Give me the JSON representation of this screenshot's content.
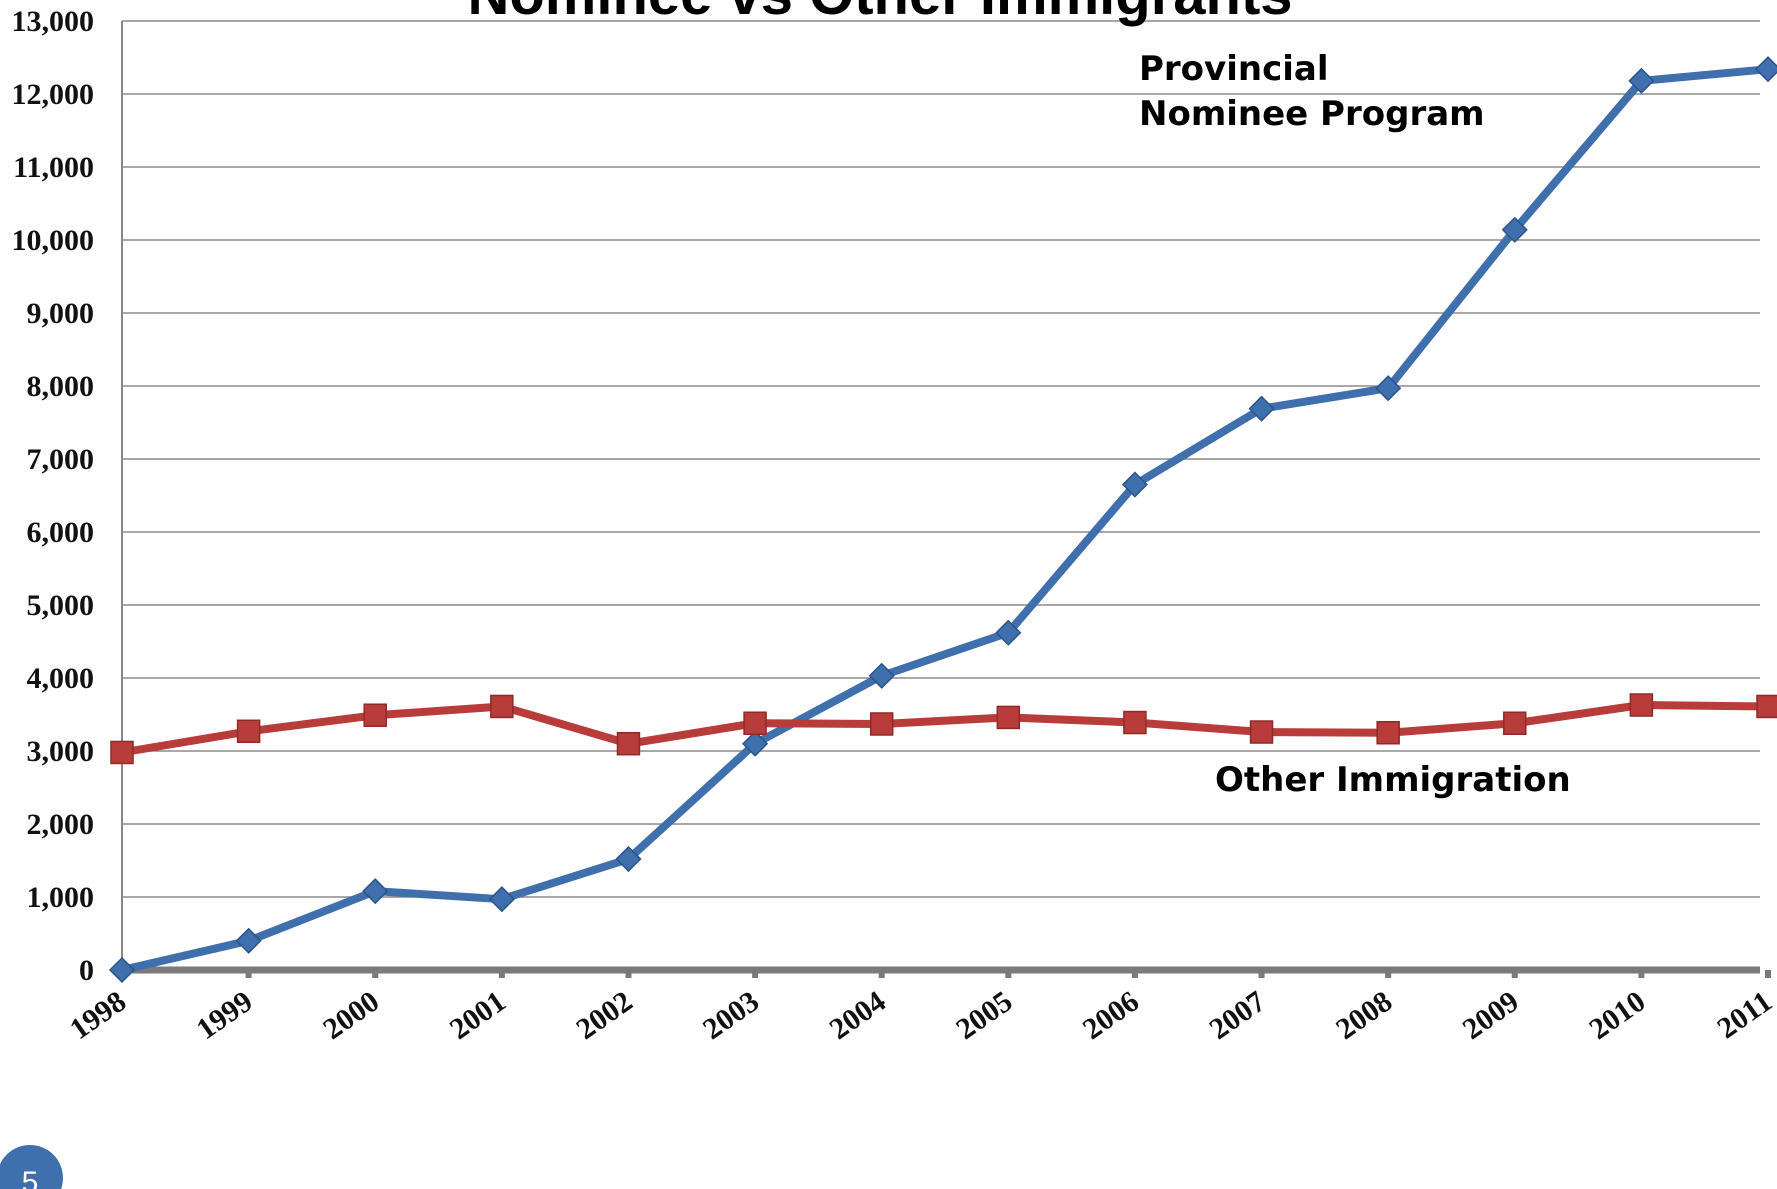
{
  "chart_data": {
    "type": "line",
    "title": "Nominee vs Other Immigrants",
    "categories": [
      "1998",
      "1999",
      "2000",
      "2001",
      "2002",
      "2003",
      "2004",
      "2005",
      "2006",
      "2007",
      "2008",
      "2009",
      "2010",
      "2011"
    ],
    "series": [
      {
        "name": "Provincial Nominee Program",
        "label_lines": [
          "Provincial",
          "Nominee Program"
        ],
        "color": "#3f6fad",
        "marker": "diamond",
        "values": [
          0,
          400,
          1080,
          970,
          1520,
          3100,
          4030,
          4620,
          6650,
          7690,
          7970,
          10140,
          12180,
          12340
        ]
      },
      {
        "name": "Other Immigration",
        "label_lines": [
          "Other Immigration"
        ],
        "color": "#b83c3a",
        "marker": "square",
        "values": [
          2980,
          3270,
          3490,
          3610,
          3100,
          3380,
          3370,
          3460,
          3390,
          3260,
          3250,
          3380,
          3630,
          3610
        ]
      }
    ],
    "yticks": [
      "0",
      "1,000",
      "2,000",
      "3,000",
      "4,000",
      "5,000",
      "6,000",
      "7,000",
      "8,000",
      "9,000",
      "10,000",
      "11,000",
      "12,000",
      "13,000"
    ],
    "ylim": [
      0,
      13000
    ],
    "grid": true,
    "slide_number": "5"
  }
}
